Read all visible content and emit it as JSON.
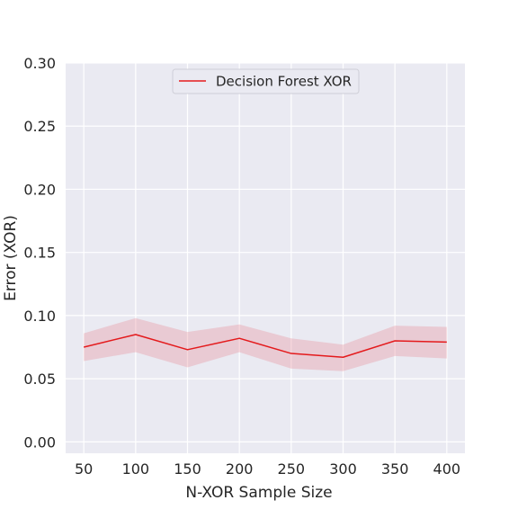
{
  "chart_data": {
    "type": "line",
    "title": "",
    "xlabel": "N-XOR Sample Size",
    "ylabel": "Error (XOR)",
    "x": [
      50,
      100,
      150,
      200,
      250,
      300,
      350,
      400
    ],
    "xticks": [
      "50",
      "100",
      "150",
      "200",
      "250",
      "300",
      "350",
      "400"
    ],
    "yticks": [
      "0.00",
      "0.05",
      "0.10",
      "0.15",
      "0.20",
      "0.25",
      "0.30"
    ],
    "xlim": [
      32.5,
      417.5
    ],
    "ylim": [
      -0.009,
      0.3
    ],
    "grid": true,
    "legend_position": "top-center",
    "series": [
      {
        "name": "Decision Forest XOR",
        "color": "#e41a1c",
        "band_color": "#e88e9a",
        "values": [
          0.075,
          0.085,
          0.073,
          0.082,
          0.07,
          0.067,
          0.08,
          0.079
        ],
        "lower": [
          0.064,
          0.071,
          0.059,
          0.071,
          0.058,
          0.056,
          0.068,
          0.066
        ],
        "upper": [
          0.086,
          0.098,
          0.087,
          0.093,
          0.082,
          0.077,
          0.092,
          0.091
        ]
      }
    ]
  }
}
